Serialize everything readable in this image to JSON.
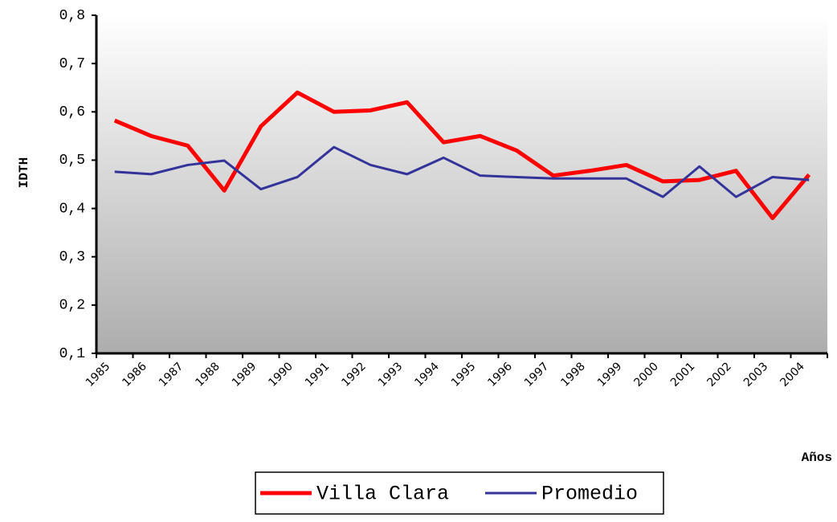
{
  "chart_data": {
    "type": "line",
    "y_label": "IDTH",
    "x_label": "Años",
    "categories": [
      "1985",
      "1986",
      "1987",
      "1988",
      "1989",
      "1990",
      "1991",
      "1992",
      "1993",
      "1994",
      "1995",
      "1996",
      "1997",
      "1998",
      "1999",
      "2000",
      "2001",
      "2002",
      "2003",
      "2004"
    ],
    "series": [
      {
        "name": "Villa Clara",
        "color": "#ff0000",
        "values": [
          0.582,
          0.55,
          0.53,
          0.437,
          0.57,
          0.64,
          0.6,
          0.603,
          0.62,
          0.537,
          0.55,
          0.52,
          0.468,
          0.478,
          0.49,
          0.456,
          0.459,
          0.478,
          0.38,
          0.47
        ]
      },
      {
        "name": "Promedio",
        "color": "#333399",
        "values": [
          0.476,
          0.471,
          0.49,
          0.499,
          0.44,
          0.465,
          0.527,
          0.49,
          0.471,
          0.505,
          0.468,
          0.465,
          0.462,
          0.462,
          0.462,
          0.424,
          0.487,
          0.424,
          0.465,
          0.459
        ]
      }
    ],
    "ylim": [
      0.1,
      0.8
    ],
    "yticks": [
      {
        "value": 0.1,
        "label": "0,1"
      },
      {
        "value": 0.2,
        "label": "0,2"
      },
      {
        "value": 0.3,
        "label": "0,3"
      },
      {
        "value": 0.4,
        "label": "0,4"
      },
      {
        "value": 0.5,
        "label": "0,5"
      },
      {
        "value": 0.6,
        "label": "0,6"
      },
      {
        "value": 0.7,
        "label": "0,7"
      },
      {
        "value": 0.8,
        "label": "0,8"
      }
    ],
    "grid": false,
    "legend": "bottom"
  }
}
